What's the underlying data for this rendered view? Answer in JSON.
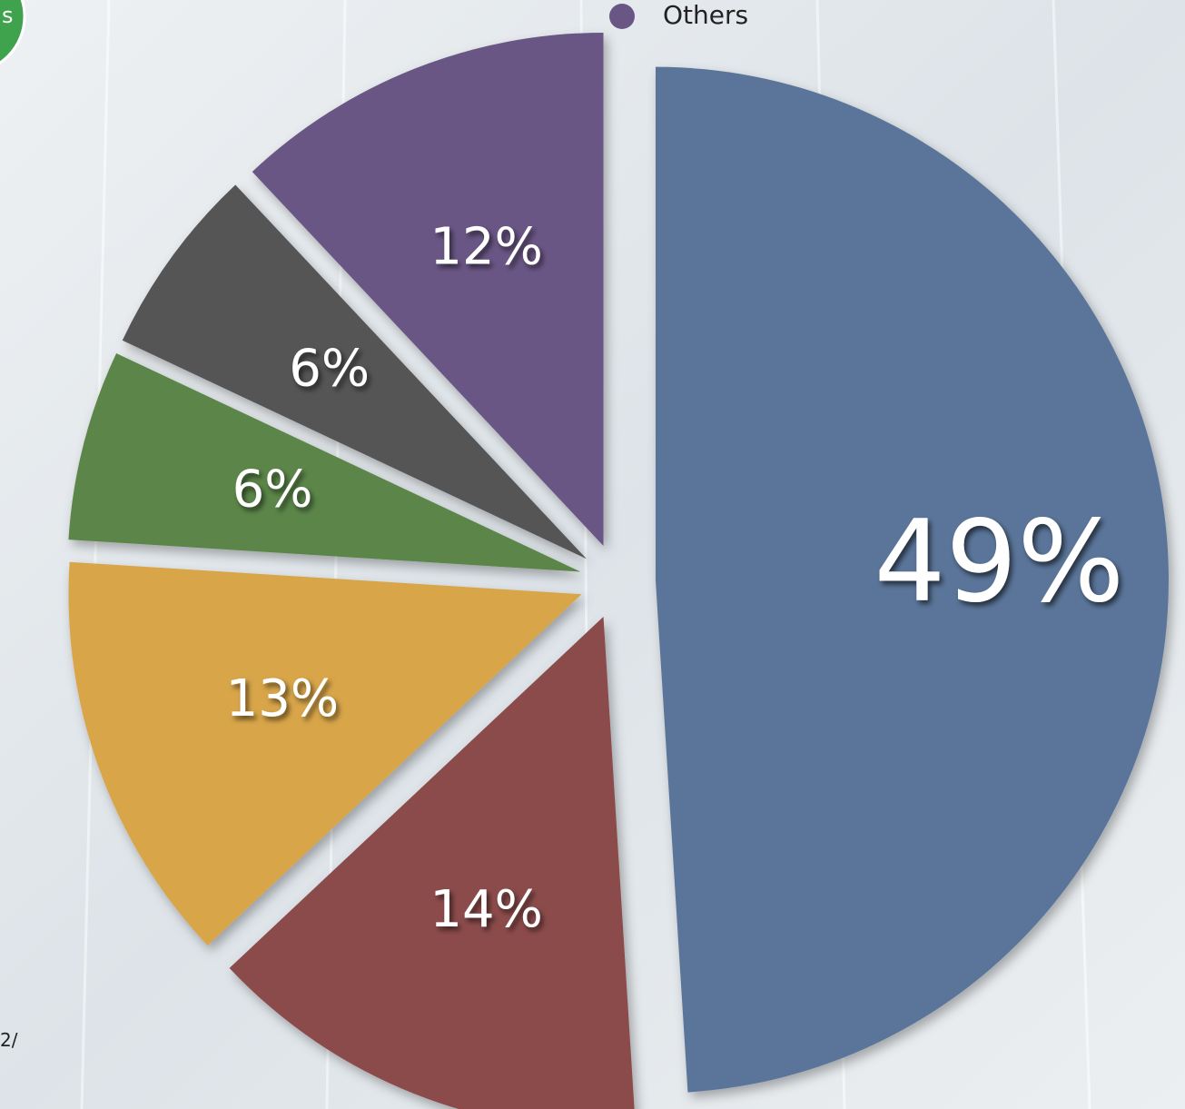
{
  "chart_data": {
    "type": "pie",
    "categories": [
      null,
      null,
      null,
      null,
      null,
      "Others"
    ],
    "values": [
      49,
      14,
      13,
      6,
      6,
      12
    ],
    "value_labels": [
      "49%",
      "14%",
      "13%",
      "6%",
      "6%",
      "12%"
    ],
    "colors": [
      "#5a7499",
      "#8c4c4c",
      "#d8a548",
      "#5b8648",
      "#555556",
      "#6a5685"
    ],
    "annotations": [
      "s",
      "2/"
    ]
  }
}
